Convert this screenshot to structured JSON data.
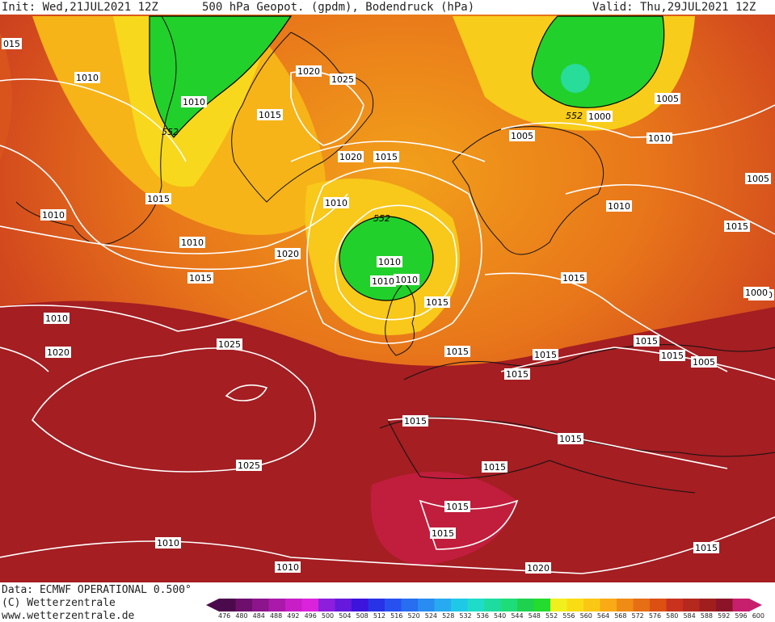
{
  "header": {
    "init": "Init: Wed,21JUL2021 12Z",
    "title": "500 hPa Geopot. (gpdm), Bodendruck (hPa)",
    "valid": "Valid: Thu,29JUL2021 12Z"
  },
  "footer": {
    "data_source": "Data: ECMWF OPERATIONAL 0.500°",
    "copyright": "(C) Wetterzentrale",
    "url": "www.wetterzentrale.de"
  },
  "legend": {
    "ticks": [
      "476",
      "480",
      "484",
      "488",
      "492",
      "496",
      "500",
      "504",
      "508",
      "512",
      "516",
      "520",
      "524",
      "528",
      "532",
      "536",
      "540",
      "544",
      "548",
      "552",
      "556",
      "560",
      "564",
      "568",
      "572",
      "576",
      "580",
      "584",
      "588",
      "592",
      "596",
      "600"
    ],
    "colors": [
      "#4b0a4b",
      "#6e0f6e",
      "#8c148c",
      "#aa19aa",
      "#c81ec8",
      "#dc23dc",
      "#8c1edc",
      "#6419dc",
      "#3c14dc",
      "#2832e6",
      "#2850f0",
      "#286ef0",
      "#288cf0",
      "#28aaf0",
      "#1ec8e6",
      "#1edcc8",
      "#1edca0",
      "#1edc78",
      "#1ed250",
      "#23dc2d",
      "#f0f01e",
      "#fadc14",
      "#fac814",
      "#faaa14",
      "#f08c14",
      "#e66e14",
      "#dc5014",
      "#c8321e",
      "#b4281e",
      "#a01e1e",
      "#8c1428",
      "#c81e6e"
    ]
  },
  "map_labels": {
    "pressure": [
      "015",
      "1010",
      "1010",
      "1015",
      "1020",
      "1025",
      "1015",
      "1020",
      "1015",
      "1010",
      "1005",
      "1000",
      "1005",
      "1010",
      "1010",
      "1005",
      "1010",
      "1015",
      "1015",
      "1010",
      "1015",
      "1000",
      "1020",
      "1015",
      "1010",
      "1015",
      "1020",
      "1025",
      "1015",
      "1000",
      "1005",
      "1015",
      "1015",
      "1015",
      "1015",
      "1015",
      "1025",
      "1015",
      "1015",
      "1015",
      "1010",
      "1020",
      "1010",
      "1015",
      "1010",
      "1010",
      "1010"
    ],
    "geopotential": [
      "552",
      "552",
      "552"
    ]
  }
}
